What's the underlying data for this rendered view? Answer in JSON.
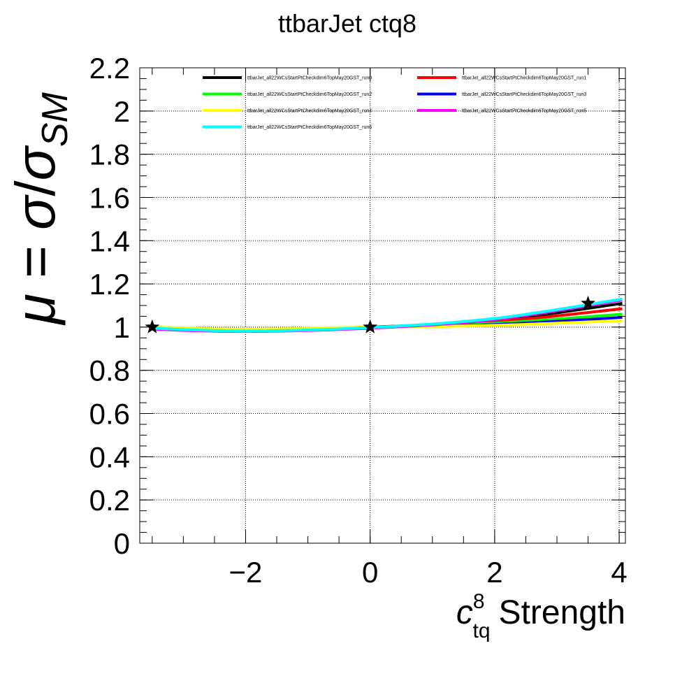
{
  "chart_data": {
    "type": "line",
    "title": "ttbarJet ctq8",
    "xlabel": {
      "symbol": "c",
      "superscript": "8",
      "subscript": "tq",
      "text": "Strength"
    },
    "ylabel": {
      "mu": "μ",
      "equals": "=",
      "sigma_num": "σ",
      "slash": "/",
      "sigma_den": "σ",
      "subscript": "SM"
    },
    "xlim": [
      -3.7,
      4.1
    ],
    "ylim": [
      0,
      2.2
    ],
    "x_ticks": [
      {
        "value": -2,
        "label": "−2"
      },
      {
        "value": 0,
        "label": "0"
      },
      {
        "value": 2,
        "label": "2"
      },
      {
        "value": 4,
        "label": "4"
      }
    ],
    "y_ticks": [
      {
        "value": 0,
        "label": "0"
      },
      {
        "value": 0.2,
        "label": "0.2"
      },
      {
        "value": 0.4,
        "label": "0.4"
      },
      {
        "value": 0.6,
        "label": "0.6"
      },
      {
        "value": 0.8,
        "label": "0.8"
      },
      {
        "value": 1.0,
        "label": "1"
      },
      {
        "value": 1.2,
        "label": "1.2"
      },
      {
        "value": 1.4,
        "label": "1.4"
      },
      {
        "value": 1.6,
        "label": "1.6"
      },
      {
        "value": 1.8,
        "label": "1.8"
      },
      {
        "value": 2.0,
        "label": "2"
      },
      {
        "value": 2.2,
        "label": "2.2"
      }
    ],
    "grid": true,
    "legend_position": "top",
    "series": [
      {
        "name": "ttbarJet_all22WCsStartPtCheckdim6TopMay20GST_run0",
        "color": "#000000",
        "x": [
          -3.5,
          -2,
          0,
          2,
          4.05
        ],
        "y": [
          1.0,
          0.985,
          1.0,
          1.03,
          1.11
        ]
      },
      {
        "name": "ttbarJet_all22WCsStartPtCheckdim6TopMay20GST_run1",
        "color": "#ff0000",
        "x": [
          -3.5,
          -2,
          0,
          2,
          4.05
        ],
        "y": [
          1.0,
          0.985,
          1.0,
          1.025,
          1.085
        ]
      },
      {
        "name": "ttbarJet_all22WCsStartPtCheckdim6TopMay20GST_run2",
        "color": "#00ff00",
        "x": [
          -3.5,
          -2,
          0,
          2,
          4.05
        ],
        "y": [
          1.0,
          0.985,
          1.0,
          1.018,
          1.06
        ]
      },
      {
        "name": "ttbarJet_all22WCsStartPtCheckdim6TopMay20GST_run3",
        "color": "#0000ff",
        "x": [
          -3.5,
          -2,
          0,
          2,
          4.05
        ],
        "y": [
          1.0,
          0.988,
          1.0,
          1.012,
          1.045
        ]
      },
      {
        "name": "ttbarJet_all22WCsStartPtCheckdim6TopMay20GST_run4",
        "color": "#ffff00",
        "x": [
          -3.5,
          -2,
          0,
          2,
          4.05
        ],
        "y": [
          1.0,
          0.99,
          1.0,
          1.008,
          1.03
        ]
      },
      {
        "name": "ttbarJet_all22WCsStartPtCheckdim6TopMay20GST_run5",
        "color": "#ff00ff",
        "x": [
          -3.5,
          -2,
          0,
          2,
          4.05
        ],
        "y": [
          0.99,
          0.98,
          0.995,
          1.035,
          1.125
        ]
      },
      {
        "name": "ttbarJet_all22WCsStartPtCheckdim6TopMay20GST_run6",
        "color": "#00ffff",
        "x": [
          -3.5,
          -2,
          0,
          2,
          4.05
        ],
        "y": [
          0.995,
          0.982,
          0.998,
          1.04,
          1.13
        ]
      }
    ],
    "markers": {
      "style": "star",
      "color": "#000000",
      "points": [
        {
          "x": -3.5,
          "y": 1.0
        },
        {
          "x": 0,
          "y": 1.0
        },
        {
          "x": 3.5,
          "y": 1.11
        }
      ]
    }
  }
}
